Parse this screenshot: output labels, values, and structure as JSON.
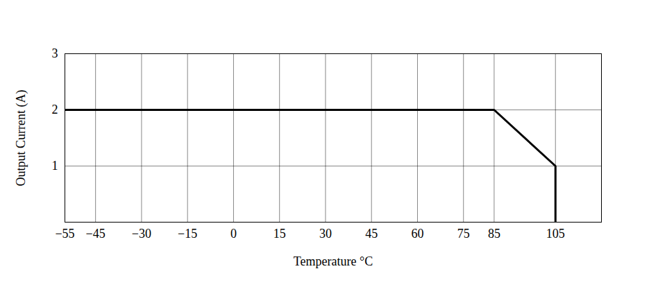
{
  "chart_data": {
    "type": "line",
    "x_label": "Temperature °C",
    "y_label": "Output Current (A)",
    "x": [
      -55,
      85,
      105,
      105
    ],
    "series": [
      {
        "name": "Output Current",
        "color": "#000000",
        "values": [
          2,
          2,
          1,
          0
        ]
      }
    ],
    "xlim": [
      -55,
      120
    ],
    "xticks": [
      -55,
      -45,
      -30,
      -15,
      0,
      15,
      30,
      45,
      60,
      75,
      85,
      105
    ],
    "ylim": [
      0,
      3
    ],
    "yticks": [
      1,
      2,
      3
    ],
    "grid": true
  }
}
